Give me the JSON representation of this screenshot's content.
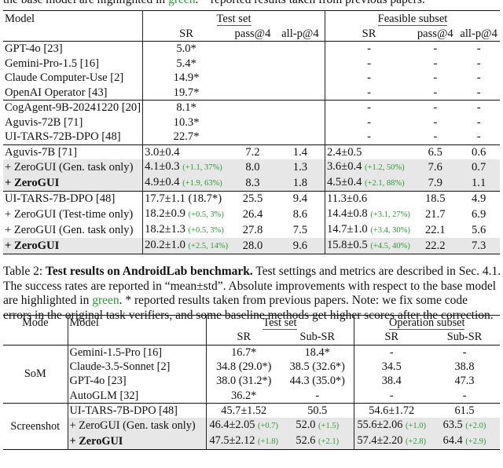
{
  "top_caption": {
    "pre": "the base model are highlighted in ",
    "green_word": "green",
    "post": ". * reported results taken from previous papers."
  },
  "table1": {
    "header": {
      "model": "Model",
      "test_set": "Test set",
      "feasible_subset": "Feasible subset",
      "sr": "SR",
      "pass4": "pass@4",
      "allp4": "all-p@4"
    },
    "groups": [
      [
        {
          "model": "GPT-4o [23]",
          "sr": "5.0*",
          "pass": "",
          "allp": "",
          "fsr": "-",
          "fpass": "-",
          "fallp": "-"
        },
        {
          "model": "Gemini-Pro-1.5 [16]",
          "sr": "5.4*",
          "pass": "",
          "allp": "",
          "fsr": "-",
          "fpass": "-",
          "fallp": "-"
        },
        {
          "model": "Claude Computer-Use [2]",
          "sr": "14.9*",
          "pass": "",
          "allp": "",
          "fsr": "-",
          "fpass": "-",
          "fallp": "-"
        },
        {
          "model": "OpenAI Operator [43]",
          "sr": "19.7*",
          "pass": "",
          "allp": "",
          "fsr": "-",
          "fpass": "-",
          "fallp": "-"
        }
      ],
      [
        {
          "model": "CogAgent-9B-20241220 [20]",
          "sr": "8.1*",
          "pass": "",
          "allp": "",
          "fsr": "-",
          "fpass": "-",
          "fallp": "-"
        },
        {
          "model": "Aguvis-72B [71]",
          "sr": "10.3*",
          "pass": "",
          "allp": "",
          "fsr": "-",
          "fpass": "-",
          "fallp": "-"
        },
        {
          "model": "UI-TARS-72B-DPO [48]",
          "sr": "22.7*",
          "pass": "",
          "allp": "",
          "fsr": "-",
          "fpass": "-",
          "fallp": "-"
        }
      ],
      [
        {
          "model": "Aguvis-7B [71]",
          "sr": "3.0±0.4",
          "sr_gain": "",
          "pass": "7.2",
          "allp": "1.4",
          "fsr": "2.4±0.5",
          "fsr_gain": "",
          "fpass": "6.5",
          "fallp": "0.6"
        },
        {
          "model": "+ ZeroGUI (Gen. task only)",
          "sr": "4.1±0.3",
          "sr_gain": "(+1.1, 37%)",
          "pass": "8.0",
          "allp": "1.3",
          "fsr": "3.6±0.4",
          "fsr_gain": "(+1.2, 50%)",
          "fpass": "7.6",
          "fallp": "0.7",
          "shaded": true
        },
        {
          "model": "+ ZeroGUI",
          "sr": "4.9±0.4",
          "sr_gain": "(+1.9, 63%)",
          "pass": "8.3",
          "allp": "1.8",
          "fsr": "4.5±0.4",
          "fsr_gain": "(+2.1, 88%)",
          "fpass": "7.9",
          "fallp": "1.1",
          "shaded": true,
          "bold": true
        }
      ],
      [
        {
          "model": "UI-TARS-7B-DPO [48]",
          "sr": "17.7±1.1 (18.7*)",
          "sr_gain": "",
          "pass": "25.5",
          "allp": "9.4",
          "fsr": "11.3±0.6",
          "fsr_gain": "",
          "fpass": "18.5",
          "fallp": "4.9"
        },
        {
          "model": "+ ZeroGUI (Test-time only)",
          "sr": "18.2±0.9",
          "sr_gain": "(+0.5, 3%)",
          "pass": "26.4",
          "allp": "8.6",
          "fsr": "14.4±0.8",
          "fsr_gain": "(+3.1, 27%)",
          "fpass": "21.7",
          "fallp": "6.9"
        },
        {
          "model": "+ ZeroGUI (Gen. task only)",
          "sr": "18.2±1.3",
          "sr_gain": "(+0.5, 3%)",
          "pass": "27.8",
          "allp": "7.5",
          "fsr": "14.7±1.0",
          "fsr_gain": "(+3.4, 30%)",
          "fpass": "22.1",
          "fallp": "5.6"
        },
        {
          "model": "+ ZeroGUI",
          "sr": "20.2±1.0",
          "sr_gain": "(+2.5, 14%)",
          "pass": "28.0",
          "allp": "9.6",
          "fsr": "15.8±0.5",
          "fsr_gain": "(+4.5, 40%)",
          "fpass": "22.2",
          "fallp": "7.3",
          "shaded": true,
          "bold": true
        }
      ]
    ]
  },
  "caption2": {
    "label": "Table 2:",
    "bold_title": "Test results on AndroidLab benchmark.",
    "line1_rest": " Test settings and metrics are described in Sec. 4.1.",
    "line2": "The success rates are reported in “mean±std”. Absolute improvements with respect to the base model",
    "line3_pre": "are highlighted in ",
    "green_word": "green",
    "line3_post": ". * reported results taken from previous papers. Note: we fix some code",
    "line4": "errors in the original task verifiers, and some baseline methods get higher scores after the correction."
  },
  "table2": {
    "header": {
      "mode": "Mode",
      "model": "Model",
      "test_set": "Test set",
      "operation_subset": "Operation subset",
      "sr": "SR",
      "subsr": "Sub-SR"
    },
    "som": {
      "mode": "SoM",
      "rows": [
        {
          "model": "Gemini-1.5-Pro [16]",
          "sr": "16.7*",
          "subsr": "18.4*",
          "osr": "-",
          "osubsr": "-"
        },
        {
          "model": "Claude-3.5-Sonnet [2]",
          "sr": "34.8 (29.0*)",
          "subsr": "38.5 (32.6*)",
          "osr": "34.5",
          "osubsr": "38.8"
        },
        {
          "model": "GPT-4o [23]",
          "sr": "38.0 (31.2*)",
          "subsr": "44.3 (35.0*)",
          "osr": "38.4",
          "osubsr": "47.3"
        },
        {
          "model": "AutoGLM [32]",
          "sr": "36.2*",
          "subsr": "-",
          "osr": "-",
          "osubsr": "-"
        }
      ]
    },
    "screenshot": {
      "mode": "Screenshot",
      "rows": [
        {
          "model": "UI-TARS-7B-DPO [48]",
          "sr": "45.7±1.52",
          "sr_gain": "",
          "subsr": "50.5",
          "subsr_gain": "",
          "osr": "54.6±1.72",
          "osr_gain": "",
          "osubsr": "61.5",
          "osubsr_gain": ""
        },
        {
          "model": "+ ZeroGUI (Gen. task only)",
          "sr": "46.4±2.05",
          "sr_gain": "(+0.7)",
          "subsr": "52.0",
          "subsr_gain": "(+1.5)",
          "osr": "55.6±2.06",
          "osr_gain": "(+1.0)",
          "osubsr": "63.5",
          "osubsr_gain": "(+2.0)",
          "shaded": true
        },
        {
          "model": "+ ZeroGUI",
          "sr": "47.5±2.12",
          "sr_gain": "(+1.8)",
          "subsr": "52.6",
          "subsr_gain": "(+2.1)",
          "osr": "57.4±2.20",
          "osr_gain": "(+2.8)",
          "osubsr": "64.4",
          "osubsr_gain": "(+2.9)",
          "shaded": true,
          "bold": true
        }
      ]
    }
  }
}
